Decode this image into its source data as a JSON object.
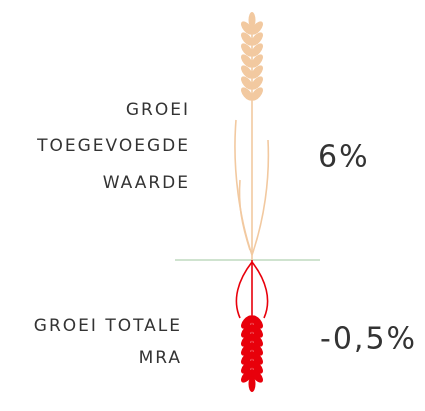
{
  "items": [
    {
      "label_lines": [
        "GROEI",
        "TOEGEVOEGDE",
        "WAARDE"
      ],
      "value": "6%"
    },
    {
      "label_lines": [
        "GROEI TOTALE",
        "MRA"
      ],
      "value": "-0,5%"
    }
  ]
}
